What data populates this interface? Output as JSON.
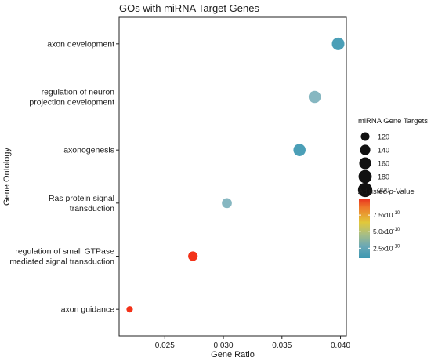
{
  "chart_data": {
    "type": "scatter",
    "title": "GOs with miRNA Target Genes",
    "xlabel": "Gene Ratio",
    "ylabel": "Gene Ontology",
    "xlim": [
      0.0211,
      0.0405
    ],
    "xticks": [
      "0.025",
      "0.030",
      "0.035",
      "0.040"
    ],
    "xtick_values": [
      0.025,
      0.03,
      0.035,
      0.04
    ],
    "grid": false,
    "legend_position": "right",
    "categories": [
      [
        "axon development"
      ],
      [
        "regulation of neuron",
        "projection development"
      ],
      [
        "axonogenesis"
      ],
      [
        "Ras protein signal",
        "transduction"
      ],
      [
        "regulation of small GTPase",
        "mediated signal transduction"
      ],
      [
        "axon guidance"
      ]
    ],
    "points": [
      {
        "gene_ratio": 0.0398,
        "gene_targets": 170,
        "p_adj": 1.5e-10,
        "color": "#4B9FB7"
      },
      {
        "gene_ratio": 0.0378,
        "gene_targets": 165,
        "p_adj": 3e-10,
        "color": "#86B7C1"
      },
      {
        "gene_ratio": 0.0365,
        "gene_targets": 165,
        "p_adj": 1.5e-10,
        "color": "#4B9FB7"
      },
      {
        "gene_ratio": 0.0303,
        "gene_targets": 135,
        "p_adj": 3e-10,
        "color": "#86B7C1"
      },
      {
        "gene_ratio": 0.0274,
        "gene_targets": 130,
        "p_adj": 1e-09,
        "color": "#F33219"
      },
      {
        "gene_ratio": 0.022,
        "gene_targets": 100,
        "p_adj": 1e-09,
        "color": "#F33219"
      }
    ],
    "size_legend": {
      "title": "miRNA Gene Targets",
      "values": [
        120,
        140,
        160,
        180,
        200
      ],
      "labels": [
        "120",
        "140",
        "160",
        "180",
        "200"
      ]
    },
    "color_legend": {
      "title_prefix": "Adjusted ",
      "title_italic": "p",
      "title_suffix": "-Value",
      "tick_labels": [
        "7.5x10",
        "5.0x10",
        "2.5x10"
      ],
      "tick_exponent": "-10",
      "tick_values": [
        7.5e-10,
        5e-10,
        2.5e-10
      ],
      "range": [
        1e-10,
        1e-09
      ],
      "colors": [
        "#E8301E",
        "#EE7A2A",
        "#E1C83A",
        "#A8BE84",
        "#6AA8B6",
        "#3C97B1"
      ]
    }
  }
}
